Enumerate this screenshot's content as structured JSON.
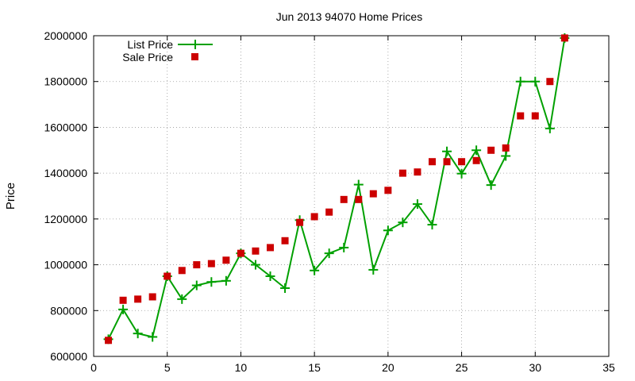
{
  "chart_data": {
    "type": "line",
    "title": "Jun 2013 94070 Home Prices",
    "xlabel": "",
    "ylabel": "Price",
    "xlim": [
      0,
      35
    ],
    "ylim": [
      600000,
      2000000
    ],
    "x_ticks": [
      0,
      5,
      10,
      15,
      20,
      25,
      30,
      35
    ],
    "y_ticks": [
      600000,
      800000,
      1000000,
      1200000,
      1400000,
      1600000,
      1800000,
      2000000
    ],
    "x_tick_labels": [
      "0",
      "5",
      "10",
      "15",
      "20",
      "25",
      "30",
      "35"
    ],
    "y_tick_labels": [
      "600000",
      "800000",
      "1000000",
      "1200000",
      "1400000",
      "1600000",
      "1800000",
      "2000000"
    ],
    "grid": true,
    "legend_position": "top-left",
    "series": [
      {
        "name": "List Price",
        "style": "lines-points",
        "color": "#00a000",
        "x": [
          1,
          2,
          3,
          4,
          5,
          6,
          7,
          8,
          9,
          10,
          11,
          12,
          13,
          14,
          15,
          16,
          17,
          18,
          19,
          20,
          21,
          22,
          23,
          24,
          25,
          26,
          27,
          28,
          29,
          30,
          31,
          32
        ],
        "values": [
          675000,
          805000,
          700000,
          685000,
          950000,
          850000,
          910000,
          925000,
          930000,
          1050000,
          1000000,
          950000,
          898000,
          1195000,
          975000,
          1050000,
          1075000,
          1350000,
          978000,
          1150000,
          1185000,
          1265000,
          1175000,
          1495000,
          1398000,
          1500000,
          1348000,
          1475000,
          1800000,
          1800000,
          1595000,
          1990000
        ]
      },
      {
        "name": "Sale Price",
        "style": "points",
        "color": "#cc0000",
        "x": [
          1,
          2,
          3,
          4,
          5,
          6,
          7,
          8,
          9,
          10,
          11,
          12,
          13,
          14,
          15,
          16,
          17,
          18,
          19,
          20,
          21,
          22,
          23,
          24,
          25,
          26,
          27,
          28,
          29,
          30,
          31,
          32
        ],
        "values": [
          670000,
          845000,
          850000,
          860000,
          950000,
          975000,
          1000000,
          1005000,
          1020000,
          1050000,
          1060000,
          1075000,
          1105000,
          1185000,
          1210000,
          1230000,
          1285000,
          1285000,
          1310000,
          1325000,
          1400000,
          1405000,
          1450000,
          1450000,
          1450000,
          1455000,
          1500000,
          1510000,
          1650000,
          1650000,
          1800000,
          1990000
        ]
      }
    ]
  }
}
